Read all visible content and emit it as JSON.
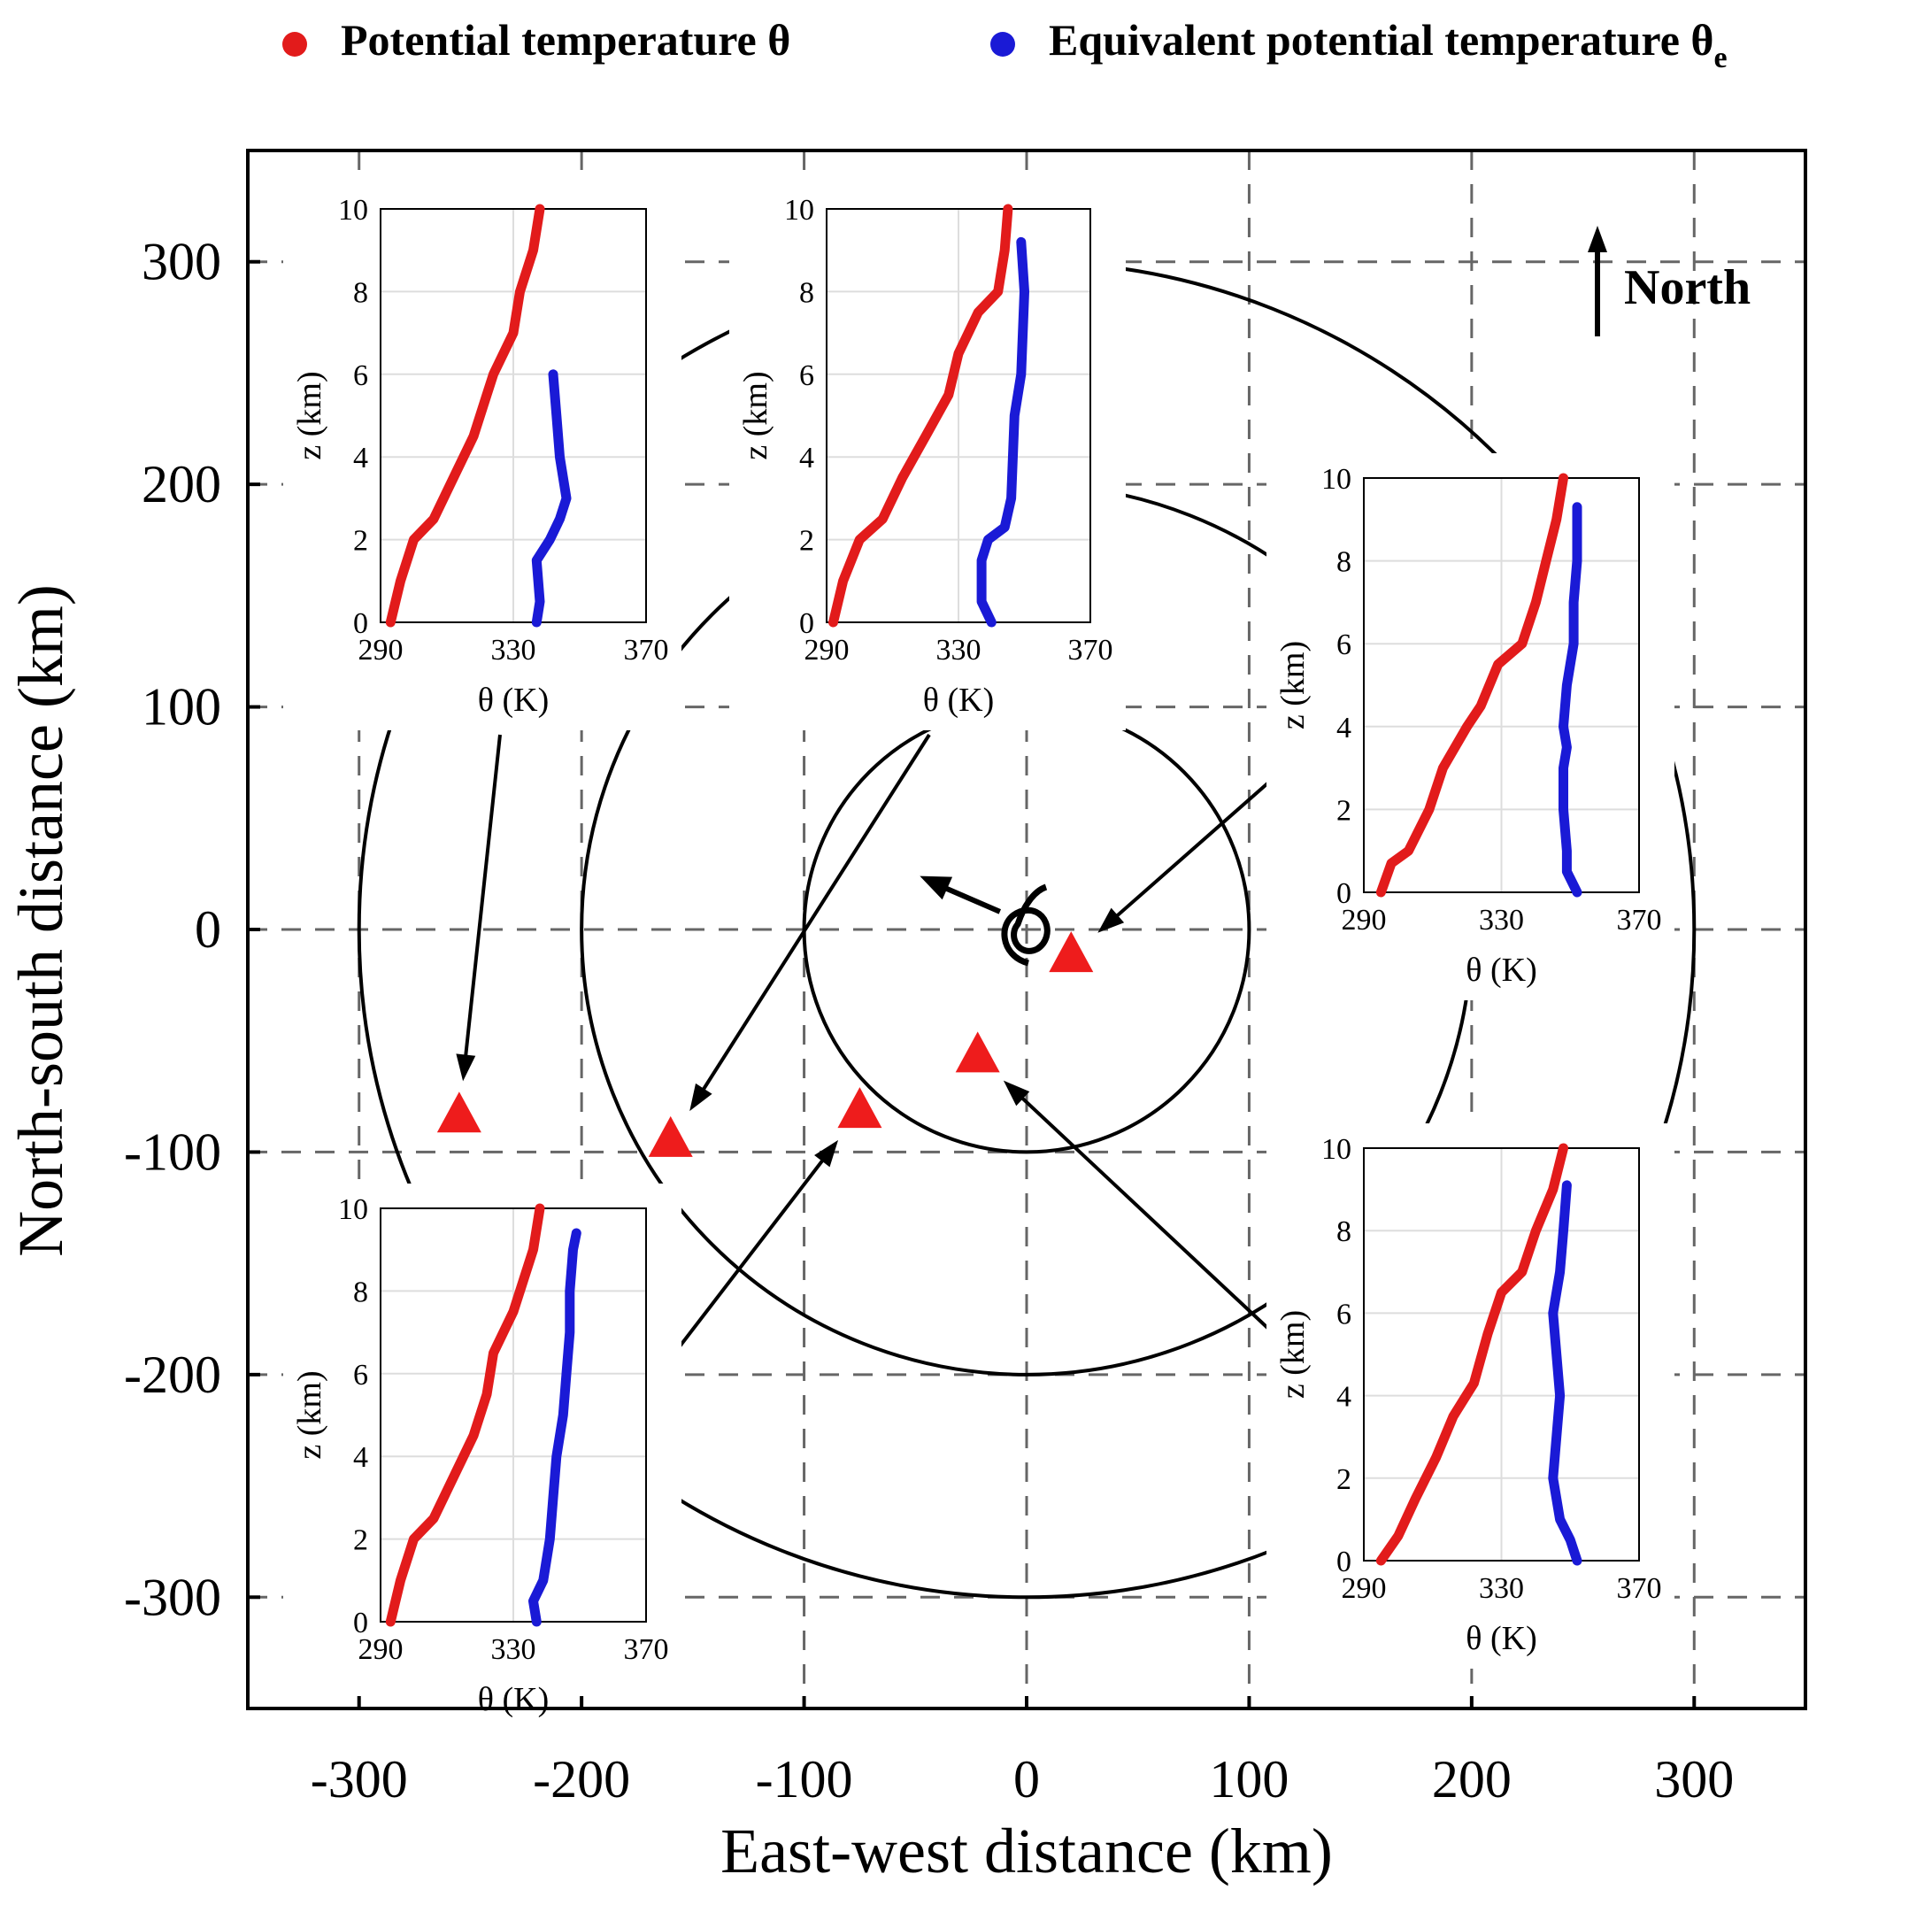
{
  "legend": {
    "theta_label": "Potential temperature θ",
    "thetae_label": "Equivalent potential temperature θ",
    "thetae_subscript": "e",
    "theta_color": "#e21b1b",
    "thetae_color": "#1a1ad6",
    "placement": "top-center"
  },
  "chart_data": {
    "type": "scatter",
    "xlabel": "East-west distance (km)",
    "ylabel": "North-south distance (km)",
    "xlim": [
      -350,
      350
    ],
    "ylim": [
      -350,
      350
    ],
    "xticks": [
      -300,
      -200,
      -100,
      0,
      100,
      200,
      300
    ],
    "yticks": [
      -300,
      -200,
      -100,
      0,
      100,
      200,
      300
    ],
    "grid": "dashed",
    "range_rings_km": [
      100,
      200,
      300
    ],
    "north_label": "North",
    "storm_center": [
      0,
      0
    ],
    "storm_motion_arrow": {
      "from": [
        -12,
        8
      ],
      "to": [
        -48,
        24
      ]
    },
    "stations": [
      {
        "name": "s1",
        "x": 20,
        "y": -12
      },
      {
        "name": "s2",
        "x": -22,
        "y": -57
      },
      {
        "name": "s3",
        "x": -75,
        "y": -82
      },
      {
        "name": "s4",
        "x": -160,
        "y": -95
      },
      {
        "name": "s5",
        "x": -255,
        "y": -84
      }
    ],
    "insets": [
      {
        "id": "inset-top-left",
        "station": "s5",
        "xlabel": "θ (K)",
        "ylabel": "z (km)",
        "xticks": [
          290,
          330,
          370
        ],
        "yticks": [
          0,
          2,
          4,
          6,
          8,
          10
        ],
        "theta": [
          [
            293,
            0
          ],
          [
            296,
            1
          ],
          [
            300,
            2
          ],
          [
            306,
            2.5
          ],
          [
            312,
            3.5
          ],
          [
            318,
            4.5
          ],
          [
            322,
            5.5
          ],
          [
            324,
            6
          ],
          [
            330,
            7
          ],
          [
            332,
            8
          ],
          [
            336,
            9
          ],
          [
            338,
            10
          ]
        ],
        "theta_e": [
          [
            337,
            0
          ],
          [
            338,
            0.5
          ],
          [
            337,
            1.5
          ],
          [
            341,
            2
          ],
          [
            344,
            2.5
          ],
          [
            346,
            3
          ],
          [
            344,
            4
          ],
          [
            343,
            5
          ],
          [
            342,
            6
          ]
        ]
      },
      {
        "id": "inset-top-middle",
        "station": "s4",
        "xlabel": "θ (K)",
        "ylabel": "z (km)",
        "xticks": [
          290,
          330,
          370
        ],
        "yticks": [
          0,
          2,
          4,
          6,
          8,
          10
        ],
        "theta": [
          [
            292,
            0
          ],
          [
            295,
            1
          ],
          [
            300,
            2
          ],
          [
            307,
            2.5
          ],
          [
            313,
            3.5
          ],
          [
            320,
            4.5
          ],
          [
            327,
            5.5
          ],
          [
            330,
            6.5
          ],
          [
            336,
            7.5
          ],
          [
            342,
            8
          ],
          [
            344,
            9
          ],
          [
            345,
            10
          ]
        ],
        "theta_e": [
          [
            340,
            0
          ],
          [
            337,
            0.5
          ],
          [
            337,
            1.5
          ],
          [
            339,
            2
          ],
          [
            344,
            2.3
          ],
          [
            346,
            3
          ],
          [
            347,
            5
          ],
          [
            349,
            6
          ],
          [
            350,
            8
          ],
          [
            349,
            9.2
          ]
        ]
      },
      {
        "id": "inset-right-top",
        "station": "s1",
        "xlabel": "θ (K)",
        "ylabel": "z (km)",
        "xticks": [
          290,
          330,
          370
        ],
        "yticks": [
          0,
          2,
          4,
          6,
          8,
          10
        ],
        "theta": [
          [
            295,
            0
          ],
          [
            298,
            0.7
          ],
          [
            303,
            1
          ],
          [
            309,
            2
          ],
          [
            313,
            3
          ],
          [
            320,
            4
          ],
          [
            324,
            4.5
          ],
          [
            329,
            5.5
          ],
          [
            336,
            6
          ],
          [
            340,
            7
          ],
          [
            343,
            8
          ],
          [
            346,
            9
          ],
          [
            348,
            10
          ]
        ],
        "theta_e": [
          [
            352,
            0
          ],
          [
            349,
            0.5
          ],
          [
            349,
            1
          ],
          [
            348,
            2
          ],
          [
            348,
            3
          ],
          [
            349,
            3.5
          ],
          [
            348,
            4
          ],
          [
            349,
            5
          ],
          [
            351,
            6
          ],
          [
            351,
            7
          ],
          [
            352,
            8
          ],
          [
            352,
            9.3
          ]
        ]
      },
      {
        "id": "inset-right-bottom",
        "station": "s2",
        "xlabel": "θ (K)",
        "ylabel": "z (km)",
        "xticks": [
          290,
          330,
          370
        ],
        "yticks": [
          0,
          2,
          4,
          6,
          8,
          10
        ],
        "theta": [
          [
            295,
            0
          ],
          [
            300,
            0.6
          ],
          [
            305,
            1.5
          ],
          [
            311,
            2.5
          ],
          [
            316,
            3.5
          ],
          [
            322,
            4.3
          ],
          [
            326,
            5.5
          ],
          [
            330,
            6.5
          ],
          [
            336,
            7
          ],
          [
            340,
            8
          ],
          [
            345,
            9
          ],
          [
            348,
            10
          ]
        ],
        "theta_e": [
          [
            352,
            0
          ],
          [
            350,
            0.5
          ],
          [
            347,
            1
          ],
          [
            345,
            2
          ],
          [
            346,
            3
          ],
          [
            347,
            4
          ],
          [
            346,
            5
          ],
          [
            345,
            6
          ],
          [
            347,
            7
          ],
          [
            348,
            8
          ],
          [
            349,
            9.1
          ]
        ]
      },
      {
        "id": "inset-bottom-left",
        "station": "s3",
        "xlabel": "θ (K)",
        "ylabel": "z (km)",
        "xticks": [
          290,
          330,
          370
        ],
        "yticks": [
          0,
          2,
          4,
          6,
          8,
          10
        ],
        "theta": [
          [
            293,
            0
          ],
          [
            296,
            1
          ],
          [
            300,
            2
          ],
          [
            306,
            2.5
          ],
          [
            312,
            3.5
          ],
          [
            318,
            4.5
          ],
          [
            322,
            5.5
          ],
          [
            324,
            6.5
          ],
          [
            330,
            7.5
          ],
          [
            332,
            8
          ],
          [
            336,
            9
          ],
          [
            338,
            10
          ]
        ],
        "theta_e": [
          [
            337,
            0
          ],
          [
            336,
            0.5
          ],
          [
            339,
            1
          ],
          [
            341,
            2
          ],
          [
            342,
            3
          ],
          [
            343,
            4
          ],
          [
            345,
            5
          ],
          [
            346,
            6
          ],
          [
            347,
            7
          ],
          [
            347,
            8
          ],
          [
            348,
            9
          ],
          [
            349,
            9.4
          ]
        ]
      }
    ]
  }
}
